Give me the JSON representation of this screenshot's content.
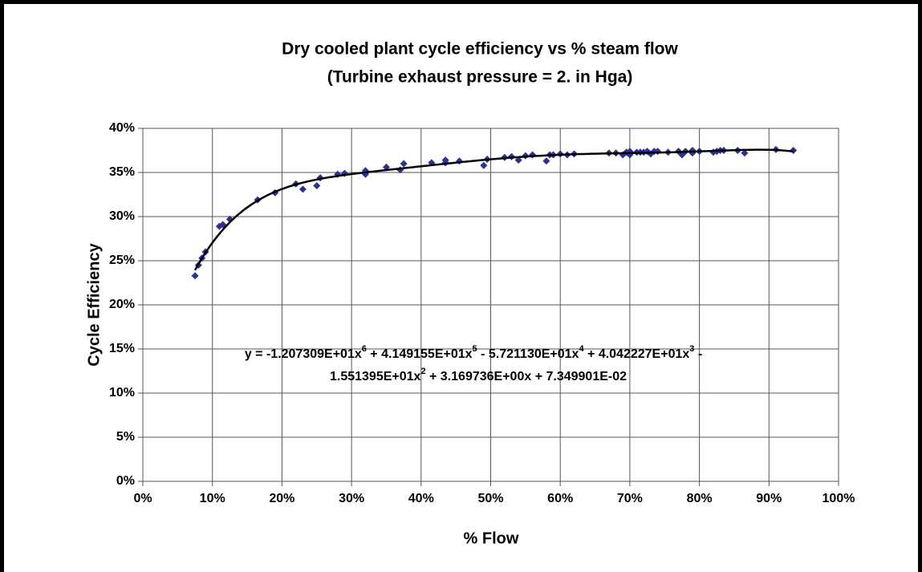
{
  "chart_data": {
    "type": "scatter",
    "title": [
      "Dry cooled plant cycle efficiency vs % steam flow",
      "(Turbine exhaust pressure = 2. in Hga)"
    ],
    "x_label": "% Flow",
    "y_label": "Cycle Efficiency",
    "color": "#2e3192",
    "x": [
      7.5,
      8,
      8.5,
      9,
      11,
      11.5,
      12.5,
      16.5,
      19,
      22,
      23,
      25,
      25.5,
      28,
      29,
      32,
      32,
      35,
      37,
      37.5,
      41.5,
      43.5,
      43.5,
      45.5,
      49,
      49.5,
      52,
      53,
      54,
      55,
      56,
      58,
      58.5,
      59,
      60,
      61,
      62,
      67,
      68,
      69,
      69.5,
      70,
      70,
      71,
      71.5,
      72,
      72.5,
      73,
      73.5,
      74,
      75.5,
      77,
      77.5,
      78,
      79,
      79,
      80,
      82,
      82.5,
      83,
      83.5,
      85.5,
      86.5,
      91,
      93.5
    ],
    "values": [
      23.3,
      24.5,
      25.3,
      26,
      28.9,
      29.1,
      29.7,
      31.9,
      32.7,
      33.7,
      33.1,
      33.5,
      34.4,
      34.8,
      34.9,
      35.2,
      34.8,
      35.6,
      35.3,
      36,
      36.1,
      36.4,
      36.1,
      36.3,
      35.8,
      36.5,
      36.7,
      36.8,
      36.4,
      36.9,
      37,
      36.3,
      37,
      37,
      37.1,
      37,
      37.1,
      37.2,
      37.2,
      37,
      37.3,
      37.4,
      37,
      37.3,
      37.3,
      37.3,
      37.4,
      37.1,
      37.4,
      37.4,
      37.3,
      37.4,
      37,
      37.4,
      37.2,
      37.5,
      37.4,
      37.3,
      37.4,
      37.5,
      37.5,
      37.5,
      37.2,
      37.6,
      37.5
    ],
    "xlim": [
      0,
      100
    ],
    "ylim": [
      0,
      40
    ],
    "xticks": [
      {
        "value": 0,
        "label": "0%"
      },
      {
        "value": 10,
        "label": "10%"
      },
      {
        "value": 20,
        "label": "20%"
      },
      {
        "value": 30,
        "label": "30%"
      },
      {
        "value": 40,
        "label": "40%"
      },
      {
        "value": 50,
        "label": "50%"
      },
      {
        "value": 60,
        "label": "60%"
      },
      {
        "value": 70,
        "label": "70%"
      },
      {
        "value": 80,
        "label": "80%"
      },
      {
        "value": 90,
        "label": "90%"
      },
      {
        "value": 100,
        "label": "100%"
      }
    ],
    "yticks": [
      {
        "value": 0,
        "label": "0%"
      },
      {
        "value": 5,
        "label": "5%"
      },
      {
        "value": 10,
        "label": "10%"
      },
      {
        "value": 15,
        "label": "15%"
      },
      {
        "value": 20,
        "label": "20%"
      },
      {
        "value": 25,
        "label": "25%"
      },
      {
        "value": 30,
        "label": "30%"
      },
      {
        "value": 35,
        "label": "35%"
      },
      {
        "value": 40,
        "label": "40%"
      }
    ],
    "grid": true,
    "trendline": {
      "type": "polynomial",
      "color": "#000000",
      "coefficients": [
        -12.07309,
        41.49155,
        -57.2113,
        40.42227,
        -15.51395,
        3.169736,
        0.07349901
      ],
      "equation": [
        [
          {
            "text": "y = -1.207309E+01x",
            "sup": "6"
          },
          {
            "text": " + 4.149155E+01x",
            "sup": "5"
          },
          {
            "text": " - 5.721130E+01x",
            "sup": "4"
          },
          {
            "text": " + 4.042227E+01x",
            "sup": "3"
          },
          {
            "text": " -"
          }
        ],
        [
          {
            "text": "1.551395E+01x",
            "sup": "2"
          },
          {
            "text": " + 3.169736E+00x + 7.349901E-02"
          }
        ]
      ]
    }
  }
}
